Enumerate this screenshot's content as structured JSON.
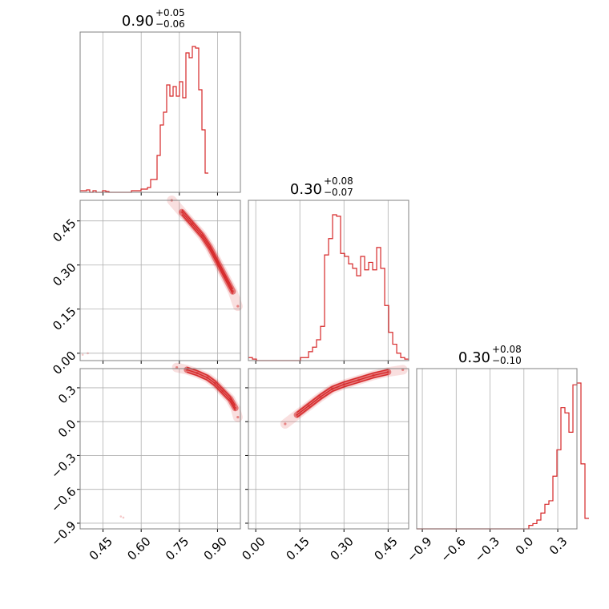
{
  "chart_data": {
    "type": "corner",
    "color": "#d62728",
    "grid": true,
    "parameters": [
      {
        "title": {
          "value": "0.90",
          "plus": "+0.05",
          "minus": "−0.06"
        },
        "range": [
          0.36,
          0.99
        ],
        "ticks": [
          0.45,
          0.6,
          0.75,
          0.9
        ],
        "tick_labels": [
          "0.45",
          "0.60",
          "0.75",
          "0.90"
        ]
      },
      {
        "title": {
          "value": "0.30",
          "plus": "+0.08",
          "minus": "−0.07"
        },
        "range": [
          -0.025,
          0.52
        ],
        "ticks": [
          0.0,
          0.15,
          0.3,
          0.45
        ],
        "tick_labels": [
          "0.00",
          "0.15",
          "0.30",
          "0.45"
        ]
      },
      {
        "title": {
          "value": "0.30",
          "plus": "+0.08",
          "minus": "−0.10"
        },
        "range": [
          -0.95,
          0.47
        ],
        "ticks": [
          -0.9,
          -0.6,
          -0.3,
          0.0,
          0.3
        ],
        "tick_labels": [
          "−0.9",
          "−0.6",
          "−0.3",
          "0.0",
          "0.3"
        ]
      }
    ],
    "histograms": [
      {
        "param": 0,
        "bin_start": 0.36,
        "bin_width": 0.0126,
        "counts": [
          0.01,
          0.01,
          0.015,
          0.0,
          0.01,
          0.0,
          0.0,
          0.01,
          0.005,
          0.0,
          0.0,
          0.0,
          0.0,
          0.0,
          0.0,
          0.0,
          0.01,
          0.01,
          0.01,
          0.02,
          0.02,
          0.03,
          0.08,
          0.08,
          0.23,
          0.42,
          0.5,
          0.67,
          0.6,
          0.66,
          0.6,
          0.69,
          0.59,
          0.87,
          0.84,
          0.91,
          0.9,
          0.64,
          0.39,
          0.12
        ]
      },
      {
        "param": 1,
        "bin_start": -0.025,
        "bin_width": 0.01363,
        "counts": [
          0.02,
          0.01,
          0.0,
          0.0,
          0.0,
          0.0,
          0.0,
          0.0,
          0.0,
          0.0,
          0.0,
          0.0,
          0.0,
          0.02,
          0.02,
          0.06,
          0.09,
          0.14,
          0.23,
          0.71,
          0.82,
          0.98,
          0.97,
          0.72,
          0.7,
          0.65,
          0.62,
          0.57,
          0.7,
          0.61,
          0.66,
          0.61,
          0.76,
          0.62,
          0.37,
          0.19,
          0.11,
          0.05,
          0.02,
          0.01
        ]
      },
      {
        "param": 2,
        "bin_start": -0.95,
        "bin_width": 0.0355,
        "counts": [
          0.0,
          0.0,
          0.0,
          0.0,
          0.0,
          0.0,
          0.0,
          0.0,
          0.0,
          0.0,
          0.0,
          0.0,
          0.0,
          0.0,
          0.0,
          0.0,
          0.0,
          0.0,
          0.0,
          0.0,
          0.0,
          0.0,
          0.0,
          0.0,
          0.0,
          0.0,
          0.0,
          0.0,
          0.02,
          0.03,
          0.05,
          0.09,
          0.14,
          0.16,
          0.3,
          0.45,
          0.69,
          0.66,
          0.55,
          0.82,
          0.83,
          0.37,
          0.06
        ]
      }
    ],
    "scatter": [
      {
        "x_param": 0,
        "y_param": 1,
        "ridge": [
          [
            0.72,
            0.52
          ],
          [
            0.76,
            0.48
          ],
          [
            0.8,
            0.44
          ],
          [
            0.84,
            0.4
          ],
          [
            0.87,
            0.36
          ],
          [
            0.9,
            0.31
          ],
          [
            0.93,
            0.26
          ],
          [
            0.96,
            0.21
          ],
          [
            0.98,
            0.16
          ]
        ],
        "outliers": [
          [
            0.37,
            -0.005
          ],
          [
            0.39,
            0.0
          ]
        ]
      },
      {
        "x_param": 0,
        "y_param": 2,
        "ridge": [
          [
            0.74,
            0.48
          ],
          [
            0.78,
            0.46
          ],
          [
            0.82,
            0.43
          ],
          [
            0.86,
            0.39
          ],
          [
            0.89,
            0.34
          ],
          [
            0.92,
            0.27
          ],
          [
            0.95,
            0.2
          ],
          [
            0.97,
            0.12
          ],
          [
            0.98,
            0.04
          ]
        ],
        "outliers": [
          [
            0.52,
            -0.84
          ],
          [
            0.53,
            -0.85
          ]
        ]
      },
      {
        "x_param": 1,
        "y_param": 2,
        "ridge": [
          [
            0.1,
            -0.02
          ],
          [
            0.14,
            0.06
          ],
          [
            0.18,
            0.14
          ],
          [
            0.22,
            0.22
          ],
          [
            0.26,
            0.29
          ],
          [
            0.3,
            0.33
          ],
          [
            0.35,
            0.37
          ],
          [
            0.4,
            0.41
          ],
          [
            0.45,
            0.44
          ],
          [
            0.5,
            0.46
          ]
        ],
        "outliers": []
      }
    ]
  }
}
